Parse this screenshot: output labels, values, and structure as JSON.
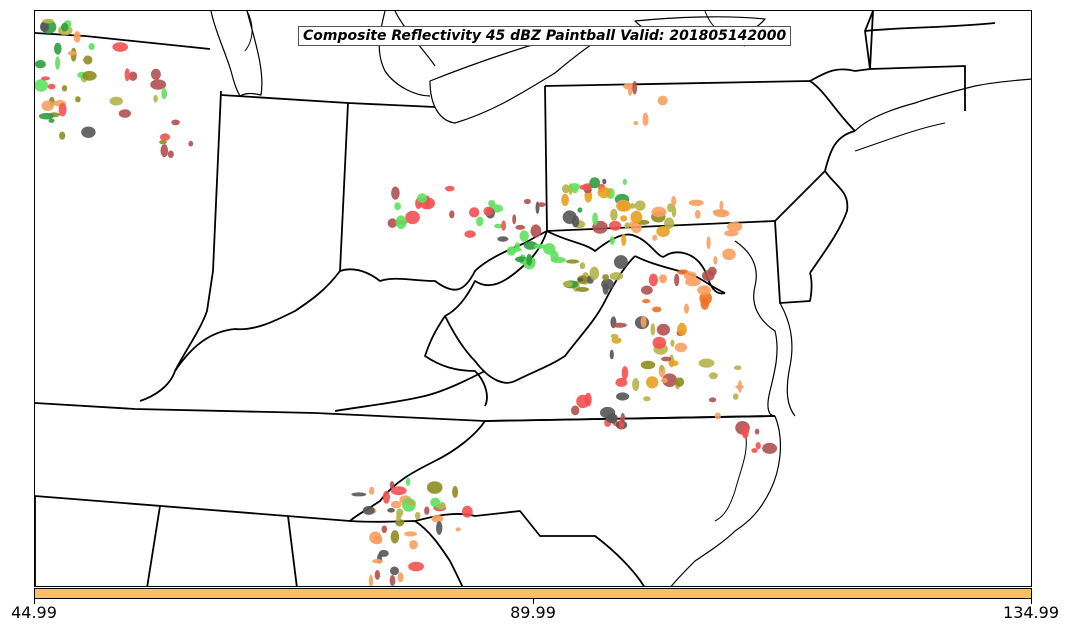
{
  "title": "Composite Reflectivity 45 dBZ Paintball Valid: 201805142000",
  "colorbar": {
    "color": "#f8c060",
    "ticks": [
      "44.99",
      "89.99",
      "134.99"
    ]
  },
  "palette": [
    "#2e9d3e",
    "#5ee05e",
    "#b4b44a",
    "#8c8c20",
    "#555555",
    "#f45050",
    "#b05050",
    "#f8a060",
    "#e8a020",
    "#f07020"
  ],
  "colors": {
    "background": "#ffffff",
    "boundary": "#000000"
  }
}
